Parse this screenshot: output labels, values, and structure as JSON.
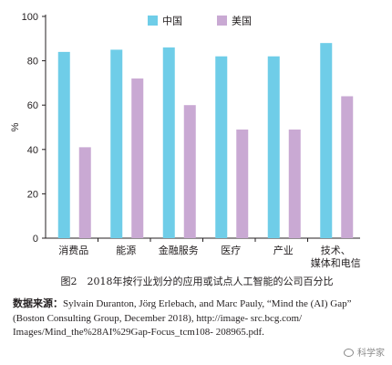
{
  "chart_data": {
    "type": "bar",
    "categories": [
      "消费品",
      "能源",
      "金融服务",
      "医疗",
      "产业",
      "技术、\n媒体和电信"
    ],
    "series": [
      {
        "name": "中国",
        "color": "#6fcde8",
        "values": [
          84,
          85,
          86,
          82,
          82,
          88
        ]
      },
      {
        "name": "美国",
        "color": "#c9a9d3",
        "values": [
          41,
          72,
          60,
          49,
          49,
          64
        ]
      }
    ],
    "ylabel": "%",
    "ylim": [
      0,
      100
    ],
    "yticks": [
      0,
      20,
      40,
      60,
      80,
      100
    ],
    "legend_position": "top",
    "grid": false
  },
  "caption": "图2　2018年按行业划分的应用或试点人工智能的公司百分比",
  "source": {
    "label": "数据来源：",
    "text": "Sylvain Duranton, Jörg Erlebach, and Marc Pauly, “Mind the (AI) Gap” (Boston Consulting Group, December 2018), http://image- src.bcg.com/ Images/Mind_the%28AI%29Gap-Focus_tcm108- 208965.pdf."
  },
  "watermark": "科学家"
}
